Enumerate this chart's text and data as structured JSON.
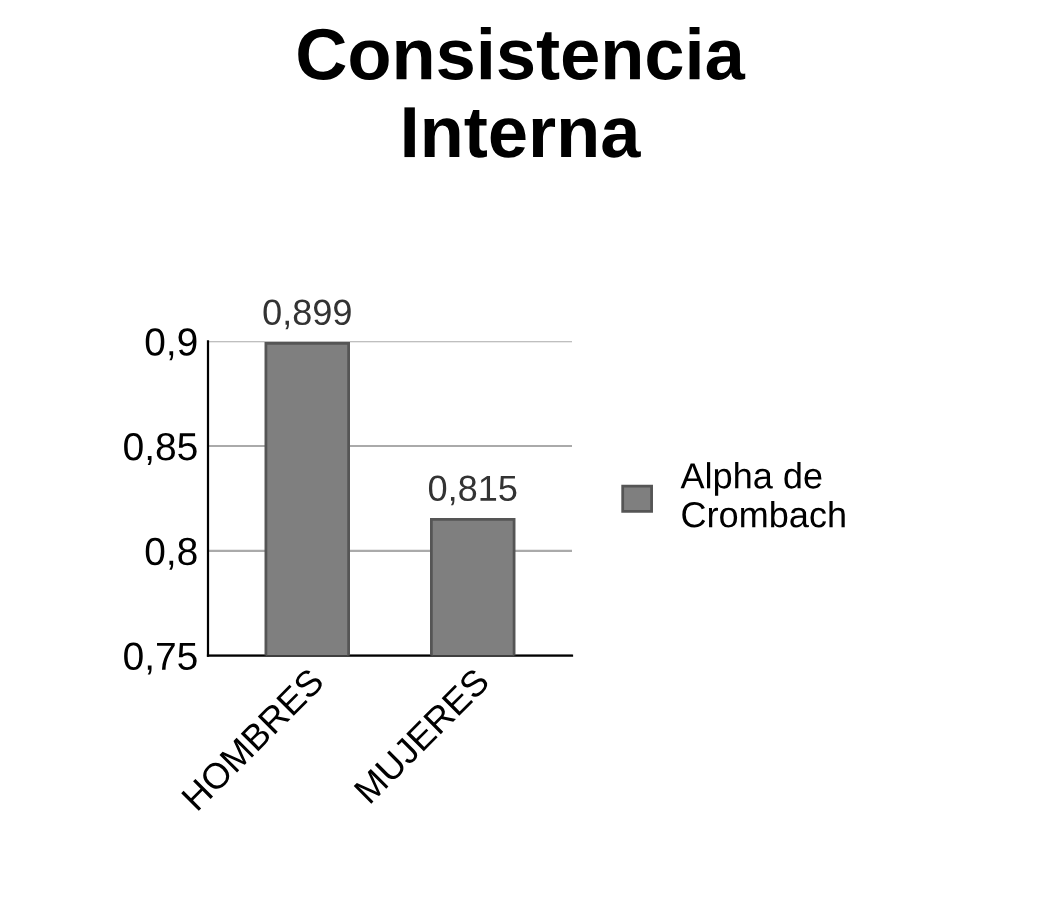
{
  "chart_data": {
    "type": "bar",
    "title": "Consistencia Interna",
    "categories": [
      "HOMBRES",
      "MUJERES"
    ],
    "series": [
      {
        "name": "Alpha de Crombach",
        "color": "#7f7f7f",
        "values": [
          0.899,
          0.815
        ],
        "value_labels": [
          "0,899",
          "0,815"
        ]
      }
    ],
    "ylim": [
      0.75,
      0.9
    ],
    "yticks": [
      {
        "value": 0.75,
        "label": "0,75"
      },
      {
        "value": 0.8,
        "label": "0,8"
      },
      {
        "value": 0.85,
        "label": "0,85"
      },
      {
        "value": 0.9,
        "label": "0,9"
      }
    ],
    "grid": "y",
    "legend": "right"
  }
}
